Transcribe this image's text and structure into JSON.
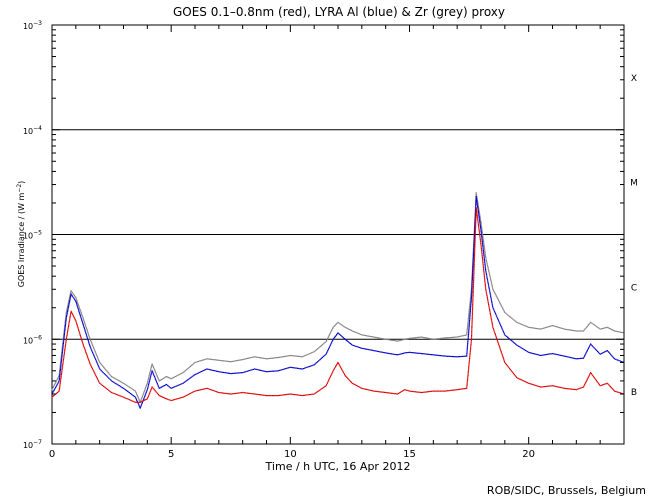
{
  "chart_data": {
    "type": "scatter",
    "title": "GOES 0.1–0.8nm (red), LYRA Al (blue) & Zr (grey) proxy",
    "xlabel": "Time / h UTC, 16 Apr 2012",
    "ylabel_parts": {
      "main": "GOES Irradiance / (W m",
      "exp": "−2",
      "close": ")"
    },
    "xlim": [
      0,
      24
    ],
    "ylim": [
      1e-07,
      0.001
    ],
    "yscale": "log",
    "x_ticks": [
      0,
      5,
      10,
      15,
      20
    ],
    "y_ticks": [
      {
        "value": 1e-07,
        "mant": "10",
        "exp": "−7"
      },
      {
        "value": 1e-06,
        "mant": "10",
        "exp": "−6"
      },
      {
        "value": 1e-05,
        "mant": "10",
        "exp": "−5"
      },
      {
        "value": 0.0001,
        "mant": "10",
        "exp": "−4"
      },
      {
        "value": 0.001,
        "mant": "10",
        "exp": "−3"
      }
    ],
    "flare_class_lines": [
      1e-06,
      1e-05,
      0.0001
    ],
    "flare_class_labels": [
      {
        "label": "B",
        "value": 3.2e-07
      },
      {
        "label": "C",
        "value": 3.2e-06
      },
      {
        "label": "M",
        "value": 3.2e-05
      },
      {
        "label": "X",
        "value": 0.00032
      }
    ],
    "series": [
      {
        "color": "#808080",
        "x": [
          0,
          0.3,
          0.6,
          0.8,
          1.0,
          1.3,
          1.6,
          2.0,
          2.5,
          3.0,
          3.5,
          3.7,
          4.0,
          4.2,
          4.5,
          4.8,
          5.0,
          5.5,
          6.0,
          6.5,
          7.0,
          7.5,
          8.0,
          8.5,
          9.0,
          9.5,
          10.0,
          10.5,
          11.0,
          11.5,
          11.8,
          12.0,
          12.3,
          12.6,
          13.0,
          13.5,
          14.0,
          14.5,
          14.8,
          15.0,
          15.5,
          16.0,
          16.5,
          17.0,
          17.4,
          17.6,
          17.8,
          18.0,
          18.2,
          18.5,
          19.0,
          19.5,
          20.0,
          20.5,
          21.0,
          21.5,
          22.0,
          22.3,
          22.6,
          23.0,
          23.3,
          23.6,
          24.0
        ],
        "y": [
          3.3e-07,
          4.5e-07,
          1.8e-06,
          2.9e-06,
          2.5e-06,
          1.6e-06,
          1e-06,
          6e-07,
          4.4e-07,
          3.8e-07,
          3.2e-07,
          2.5e-07,
          3.8e-07,
          5.8e-07,
          4e-07,
          4.4e-07,
          4.2e-07,
          4.8e-07,
          6e-07,
          6.5e-07,
          6.3e-07,
          6.1e-07,
          6.4e-07,
          6.8e-07,
          6.5e-07,
          6.7e-07,
          7e-07,
          6.8e-07,
          7.6e-07,
          9.5e-07,
          1.3e-06,
          1.45e-06,
          1.3e-06,
          1.2e-06,
          1.1e-06,
          1.05e-06,
          1e-06,
          9.6e-07,
          1e-06,
          1.02e-06,
          1.05e-06,
          1e-06,
          1.03e-06,
          1.05e-06,
          1.1e-06,
          3e-06,
          2.5e-05,
          1.3e-05,
          6e-06,
          3e-06,
          1.8e-06,
          1.45e-06,
          1.3e-06,
          1.25e-06,
          1.35e-06,
          1.25e-06,
          1.2e-06,
          1.2e-06,
          1.45e-06,
          1.25e-06,
          1.3e-06,
          1.2e-06,
          1.15e-06
        ]
      },
      {
        "color": "#0000cc",
        "x": [
          0,
          0.3,
          0.6,
          0.8,
          1.0,
          1.3,
          1.6,
          2.0,
          2.5,
          3.0,
          3.5,
          3.7,
          4.0,
          4.2,
          4.5,
          4.8,
          5.0,
          5.5,
          6.0,
          6.5,
          7.0,
          7.5,
          8.0,
          8.5,
          9.0,
          9.5,
          10.0,
          10.5,
          11.0,
          11.5,
          11.8,
          12.0,
          12.3,
          12.6,
          13.0,
          13.5,
          14.0,
          14.5,
          14.8,
          15.0,
          15.5,
          16.0,
          16.5,
          17.0,
          17.4,
          17.6,
          17.8,
          18.0,
          18.2,
          18.5,
          19.0,
          19.5,
          20.0,
          20.5,
          21.0,
          21.5,
          22.0,
          22.3,
          22.6,
          23.0,
          23.3,
          23.6,
          24.0
        ],
        "y": [
          3e-07,
          4e-07,
          1.6e-06,
          2.7e-06,
          2.3e-06,
          1.4e-06,
          8.5e-07,
          5.2e-07,
          4e-07,
          3.4e-07,
          2.8e-07,
          2.2e-07,
          3.3e-07,
          5e-07,
          3.4e-07,
          3.7e-07,
          3.4e-07,
          3.8e-07,
          4.6e-07,
          5.2e-07,
          4.9e-07,
          4.7e-07,
          4.8e-07,
          5.2e-07,
          4.9e-07,
          5e-07,
          5.4e-07,
          5.2e-07,
          5.7e-07,
          7.2e-07,
          1e-06,
          1.15e-06,
          1e-06,
          8.8e-07,
          8.2e-07,
          7.8e-07,
          7.4e-07,
          7.1e-07,
          7.4e-07,
          7.5e-07,
          7.3e-07,
          7.1e-07,
          6.9e-07,
          6.8e-07,
          6.9e-07,
          2.5e-06,
          2.3e-05,
          1.1e-05,
          4.5e-06,
          2e-06,
          1.1e-06,
          8.8e-07,
          7.5e-07,
          7e-07,
          7.3e-07,
          6.9e-07,
          6.5e-07,
          6.6e-07,
          9e-07,
          7.2e-07,
          7.8e-07,
          6.5e-07,
          6e-07
        ]
      },
      {
        "color": "#dd0000",
        "x": [
          0,
          0.3,
          0.6,
          0.8,
          1.0,
          1.3,
          1.6,
          2.0,
          2.5,
          3.0,
          3.5,
          3.7,
          4.0,
          4.2,
          4.5,
          4.8,
          5.0,
          5.5,
          6.0,
          6.5,
          7.0,
          7.5,
          8.0,
          8.5,
          9.0,
          9.5,
          10.0,
          10.5,
          11.0,
          11.5,
          11.8,
          12.0,
          12.3,
          12.6,
          13.0,
          13.5,
          14.0,
          14.5,
          14.8,
          15.0,
          15.5,
          16.0,
          16.5,
          17.0,
          17.4,
          17.6,
          17.8,
          18.0,
          18.2,
          18.5,
          19.0,
          19.5,
          20.0,
          20.5,
          21.0,
          21.5,
          22.0,
          22.3,
          22.6,
          23.0,
          23.3,
          23.6,
          24.0
        ],
        "y": [
          2.8e-07,
          3.2e-07,
          1e-06,
          1.85e-06,
          1.5e-06,
          9e-07,
          5.8e-07,
          3.8e-07,
          3.1e-07,
          2.8e-07,
          2.5e-07,
          2.5e-07,
          2.7e-07,
          3.5e-07,
          2.9e-07,
          2.7e-07,
          2.6e-07,
          2.8e-07,
          3.2e-07,
          3.4e-07,
          3.1e-07,
          3e-07,
          3.1e-07,
          3e-07,
          2.9e-07,
          2.9e-07,
          3e-07,
          2.9e-07,
          3e-07,
          3.6e-07,
          5e-07,
          6e-07,
          4.5e-07,
          3.8e-07,
          3.4e-07,
          3.2e-07,
          3.1e-07,
          3e-07,
          3.3e-07,
          3.2e-07,
          3.1e-07,
          3.2e-07,
          3.2e-07,
          3.3e-07,
          3.4e-07,
          1e-06,
          1.8e-05,
          8e-06,
          3e-06,
          1.3e-06,
          6e-07,
          4.3e-07,
          3.8e-07,
          3.5e-07,
          3.6e-07,
          3.4e-07,
          3.3e-07,
          3.5e-07,
          4.8e-07,
          3.6e-07,
          3.8e-07,
          3.2e-07,
          3e-07
        ]
      }
    ]
  },
  "footer": {
    "credit": "ROB/SIDC, Brussels, Belgium"
  }
}
